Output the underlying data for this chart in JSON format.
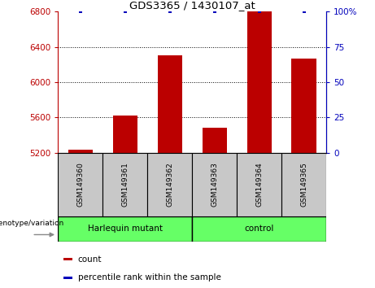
{
  "title": "GDS3365 / 1430107_at",
  "samples": [
    "GSM149360",
    "GSM149361",
    "GSM149362",
    "GSM149363",
    "GSM149364",
    "GSM149365"
  ],
  "red_values": [
    5230,
    5625,
    6305,
    5480,
    6800,
    6270
  ],
  "blue_values": [
    100,
    100,
    100,
    100,
    100,
    100
  ],
  "ylim_left": [
    5200,
    6800
  ],
  "ylim_right": [
    0,
    100
  ],
  "yticks_left": [
    5200,
    5600,
    6000,
    6400,
    6800
  ],
  "yticks_right": [
    0,
    25,
    50,
    75,
    100
  ],
  "bar_color": "#BB0000",
  "dot_color": "#0000BB",
  "left_axis_color": "#BB0000",
  "right_axis_color": "#0000BB",
  "bar_width": 0.55,
  "legend_red_label": "count",
  "legend_blue_label": "percentile rank within the sample",
  "genotype_label": "genotype/variation",
  "sample_box_color": "#C8C8C8",
  "group_box_color": "#66FF66",
  "harlequin_label": "Harlequin mutant",
  "control_label": "control"
}
